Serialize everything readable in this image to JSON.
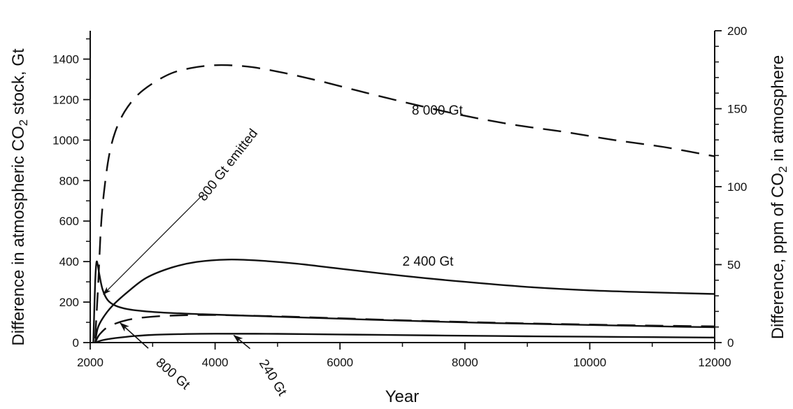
{
  "chart_data": {
    "type": "line",
    "xlabel": "Year",
    "ylabel_left_prefix": "Difference in atmospheric CO",
    "ylabel_left_sub": "2",
    "ylabel_left_suffix": " stock, Gt",
    "ylabel_right_prefix": "Difference, ppm of CO",
    "ylabel_right_sub": "2",
    "ylabel_right_suffix": " in atmosphere",
    "xlim": [
      2000,
      12000
    ],
    "ylim_left": [
      0,
      1540
    ],
    "ylim_right": [
      0,
      200
    ],
    "x_ticks": [
      2000,
      4000,
      6000,
      8000,
      10000,
      12000
    ],
    "x_tick_labels": [
      "2000",
      "4000",
      "6000",
      "8000",
      "10000",
      "12000"
    ],
    "y_left_ticks": [
      0,
      200,
      400,
      600,
      800,
      1000,
      1200,
      1400
    ],
    "y_left_tick_labels": [
      "0",
      "200",
      "400",
      "600",
      "800",
      "1000",
      "1200",
      "1400"
    ],
    "y_right_ticks": [
      0,
      50,
      100,
      150,
      200
    ],
    "y_right_tick_labels": [
      "0",
      "50",
      "100",
      "150",
      "200"
    ],
    "series": [
      {
        "dash": "dashed",
        "x": [
          2080,
          2100,
          2130,
          2170,
          2220,
          2300,
          2400,
          2550,
          2750,
          3000,
          3300,
          3600,
          3900,
          4200,
          4600,
          5100,
          5700,
          6400,
          7200,
          8000,
          8800,
          9600,
          10400,
          11200,
          12000
        ],
        "y": [
          20,
          130,
          300,
          560,
          740,
          920,
          1040,
          1140,
          1220,
          1280,
          1330,
          1355,
          1368,
          1370,
          1360,
          1332,
          1290,
          1235,
          1175,
          1120,
          1075,
          1040,
          1000,
          965,
          920
        ]
      },
      {
        "dash": "solid",
        "x": [
          2080,
          2120,
          2200,
          2350,
          2600,
          2900,
          3300,
          3700,
          4200,
          4700,
          5300,
          6000,
          7000,
          8000,
          9000,
          10000,
          11000,
          12000
        ],
        "y": [
          0,
          70,
          120,
          180,
          250,
          320,
          370,
          398,
          410,
          405,
          390,
          365,
          330,
          300,
          275,
          258,
          248,
          240
        ]
      },
      {
        "dash": "solid",
        "x": [
          2050,
          2080,
          2100,
          2120,
          2150,
          2200,
          2280,
          2400,
          2600,
          2900,
          3300,
          3800,
          4500,
          5500,
          6500,
          7500,
          8500,
          9500,
          10500,
          11500,
          12000
        ],
        "y": [
          0,
          300,
          395,
          385,
          330,
          260,
          210,
          183,
          165,
          154,
          146,
          140,
          133,
          123,
          113,
          104,
          96,
          90,
          84,
          78,
          76
        ]
      },
      {
        "dash": "dashed",
        "x": [
          2080,
          2150,
          2300,
          2600,
          3000,
          3500,
          4000,
          5000,
          6000,
          7000,
          8000,
          9000,
          10000,
          11000,
          12000
        ],
        "y": [
          0,
          40,
          80,
          112,
          128,
          135,
          136,
          130,
          120,
          110,
          102,
          95,
          89,
          84,
          80
        ]
      },
      {
        "dash": "solid",
        "x": [
          2080,
          2200,
          2400,
          2700,
          3000,
          3500,
          4000,
          5000,
          6000,
          7000,
          8000,
          9000,
          10000,
          11000,
          12000
        ],
        "y": [
          0,
          12,
          22,
          32,
          38,
          42,
          44,
          43,
          40,
          37,
          34,
          31,
          29,
          27,
          25
        ]
      }
    ],
    "annotations": [
      {
        "text": "8 000 Gt",
        "x": 7150,
        "y": 1125,
        "angle": 0,
        "anchor": "start"
      },
      {
        "text": "2 400 Gt",
        "x": 7000,
        "y": 380,
        "angle": 0,
        "anchor": "start"
      },
      {
        "text": "800 Gt emitted",
        "x": 3830,
        "y": 695,
        "angle": -52,
        "anchor": "start"
      },
      {
        "text": "800 Gt",
        "x": 3040,
        "y": -105,
        "angle": 41,
        "anchor": "start"
      },
      {
        "text": "240 Gt",
        "x": 4700,
        "y": -100,
        "angle": 58,
        "anchor": "start"
      }
    ],
    "arrows": [
      {
        "from": [
          3790,
          726
        ],
        "to": [
          2210,
          238
        ],
        "head": "small"
      },
      {
        "from": [
          2930,
          -28
        ],
        "to": [
          2480,
          97
        ],
        "head": "large"
      },
      {
        "from": [
          4560,
          -30
        ],
        "to": [
          4300,
          36
        ],
        "head": "large"
      }
    ]
  }
}
